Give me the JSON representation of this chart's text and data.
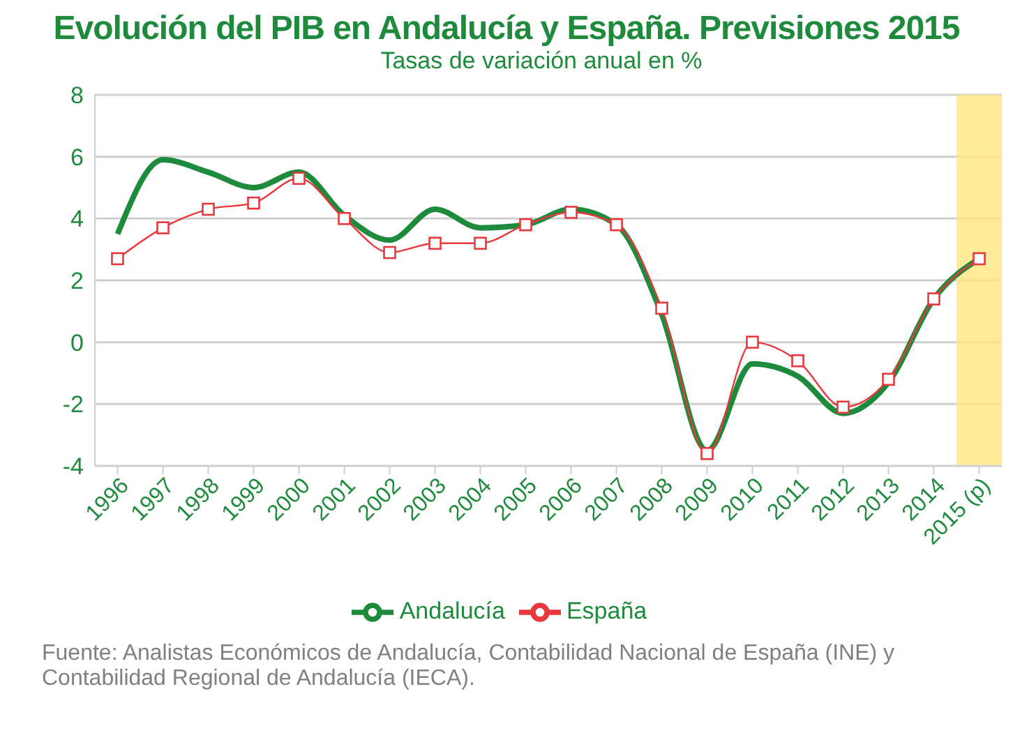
{
  "chart_data": {
    "type": "line",
    "title": "Evolución del PIB en Andalucía y España. Previsiones 2015",
    "subtitle": "Tasas de variación anual en %",
    "categories": [
      "1996",
      "1997",
      "1998",
      "1999",
      "2000",
      "2001",
      "2002",
      "2003",
      "2004",
      "2005",
      "2006",
      "2007",
      "2008",
      "2009",
      "2010",
      "2011",
      "2012",
      "2013",
      "2014",
      "2015 (p)"
    ],
    "series": [
      {
        "name": "Andalucía",
        "color": "#1e8a3c",
        "marker": "none",
        "values": [
          3.5,
          5.9,
          5.5,
          5.0,
          5.5,
          4.1,
          3.3,
          4.3,
          3.7,
          3.8,
          4.3,
          3.8,
          0.9,
          -3.5,
          -0.7,
          -1.1,
          -2.3,
          -1.3,
          1.4,
          2.7
        ]
      },
      {
        "name": "España",
        "color": "#e8383d",
        "marker": "square",
        "values": [
          2.7,
          3.7,
          4.3,
          4.5,
          5.3,
          4.0,
          2.9,
          3.2,
          3.2,
          3.8,
          4.2,
          3.8,
          1.1,
          -3.6,
          0.0,
          -0.6,
          -2.1,
          -1.2,
          1.4,
          2.7
        ]
      }
    ],
    "ylim": [
      -4,
      8
    ],
    "yticks": [
      -4,
      -2,
      0,
      2,
      4,
      6,
      8
    ],
    "grid": "y",
    "legend": "bottom",
    "bands": [
      {
        "axis": "x",
        "from": "2015 (p)",
        "to": "2015 (p)",
        "color": "#ffe680"
      }
    ],
    "annotations": [
      "Fuente: Analistas Económicos de Andalucía, Contabilidad Nacional de España (INE) y Contabilidad Regional de Andalucía (IECA)."
    ]
  }
}
